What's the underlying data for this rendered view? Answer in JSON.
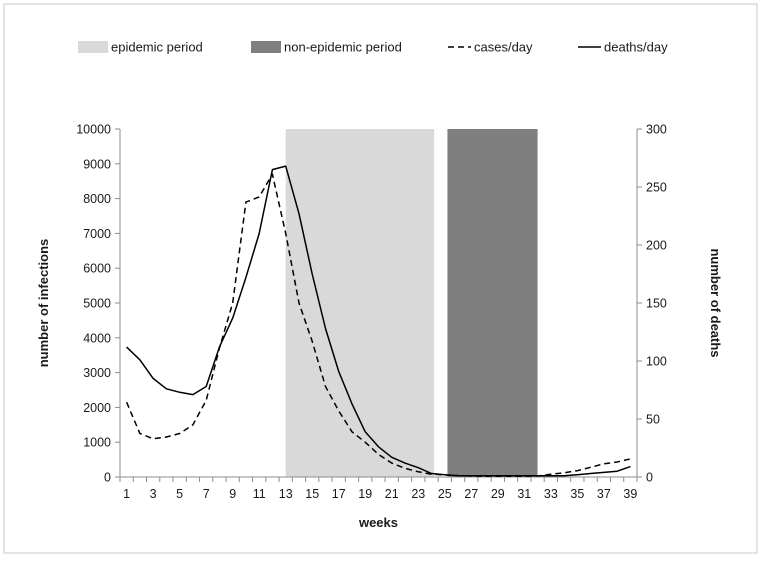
{
  "chart_data": {
    "type": "line",
    "xlabel": "weeks",
    "ylabel_left": "number of infections",
    "ylabel_right": "number of deaths",
    "ylim_left": [
      0,
      10000
    ],
    "ylim_right": [
      0,
      300
    ],
    "x_ticks": [
      "1",
      "3",
      "5",
      "7",
      "9",
      "11",
      "13",
      "15",
      "17",
      "19",
      "21",
      "23",
      "25",
      "27",
      "29",
      "31",
      "33",
      "35",
      "37",
      "39"
    ],
    "y_left_ticks": [
      "0",
      "1000",
      "2000",
      "3000",
      "4000",
      "5000",
      "6000",
      "7000",
      "8000",
      "9000",
      "10000"
    ],
    "y_right_ticks": [
      "0",
      "50",
      "100",
      "150",
      "200",
      "250",
      "300"
    ],
    "legend_position": "top",
    "shaded_periods": [
      {
        "name": "epidemic period",
        "start_week": 13,
        "end_week": 24.2,
        "color": "#d9d9d9"
      },
      {
        "name": "non-epidemic period",
        "start_week": 25.2,
        "end_week": 32,
        "color": "#7f7f7f"
      }
    ],
    "series": [
      {
        "name": "cases/day",
        "axis": "left",
        "style": "dashed",
        "color": "#000000",
        "x": [
          1,
          2,
          3,
          4,
          5,
          6,
          7,
          8,
          9,
          10,
          11,
          12,
          13,
          14,
          15,
          16,
          17,
          18,
          19,
          20,
          21,
          22,
          23,
          24,
          25,
          26,
          27,
          28,
          29,
          30,
          31,
          32,
          33,
          34,
          35,
          36,
          37,
          38,
          39
        ],
        "values": [
          2150,
          1250,
          1100,
          1150,
          1250,
          1500,
          2200,
          3700,
          5000,
          7900,
          8050,
          8700,
          7000,
          5000,
          3900,
          2600,
          1900,
          1300,
          1000,
          650,
          400,
          250,
          150,
          80,
          60,
          40,
          30,
          20,
          20,
          20,
          20,
          30,
          80,
          120,
          180,
          280,
          380,
          430,
          520
        ]
      },
      {
        "name": "deaths/day",
        "axis": "right",
        "style": "solid",
        "color": "#000000",
        "x": [
          1,
          2,
          3,
          4,
          5,
          6,
          7,
          8,
          9,
          10,
          11,
          12,
          13,
          14,
          15,
          16,
          17,
          18,
          19,
          20,
          21,
          22,
          23,
          24,
          25,
          26,
          27,
          28,
          29,
          30,
          31,
          32,
          33,
          34,
          35,
          36,
          37,
          38,
          39
        ],
        "values": [
          112,
          101,
          85,
          76,
          73,
          71,
          78,
          112,
          137,
          172,
          210,
          265,
          268,
          227,
          175,
          128,
          91,
          63,
          39,
          26,
          17,
          12,
          8,
          3,
          2,
          1,
          1,
          1,
          1,
          1,
          1,
          1,
          1,
          1,
          2,
          3,
          4,
          5,
          9
        ]
      }
    ]
  }
}
